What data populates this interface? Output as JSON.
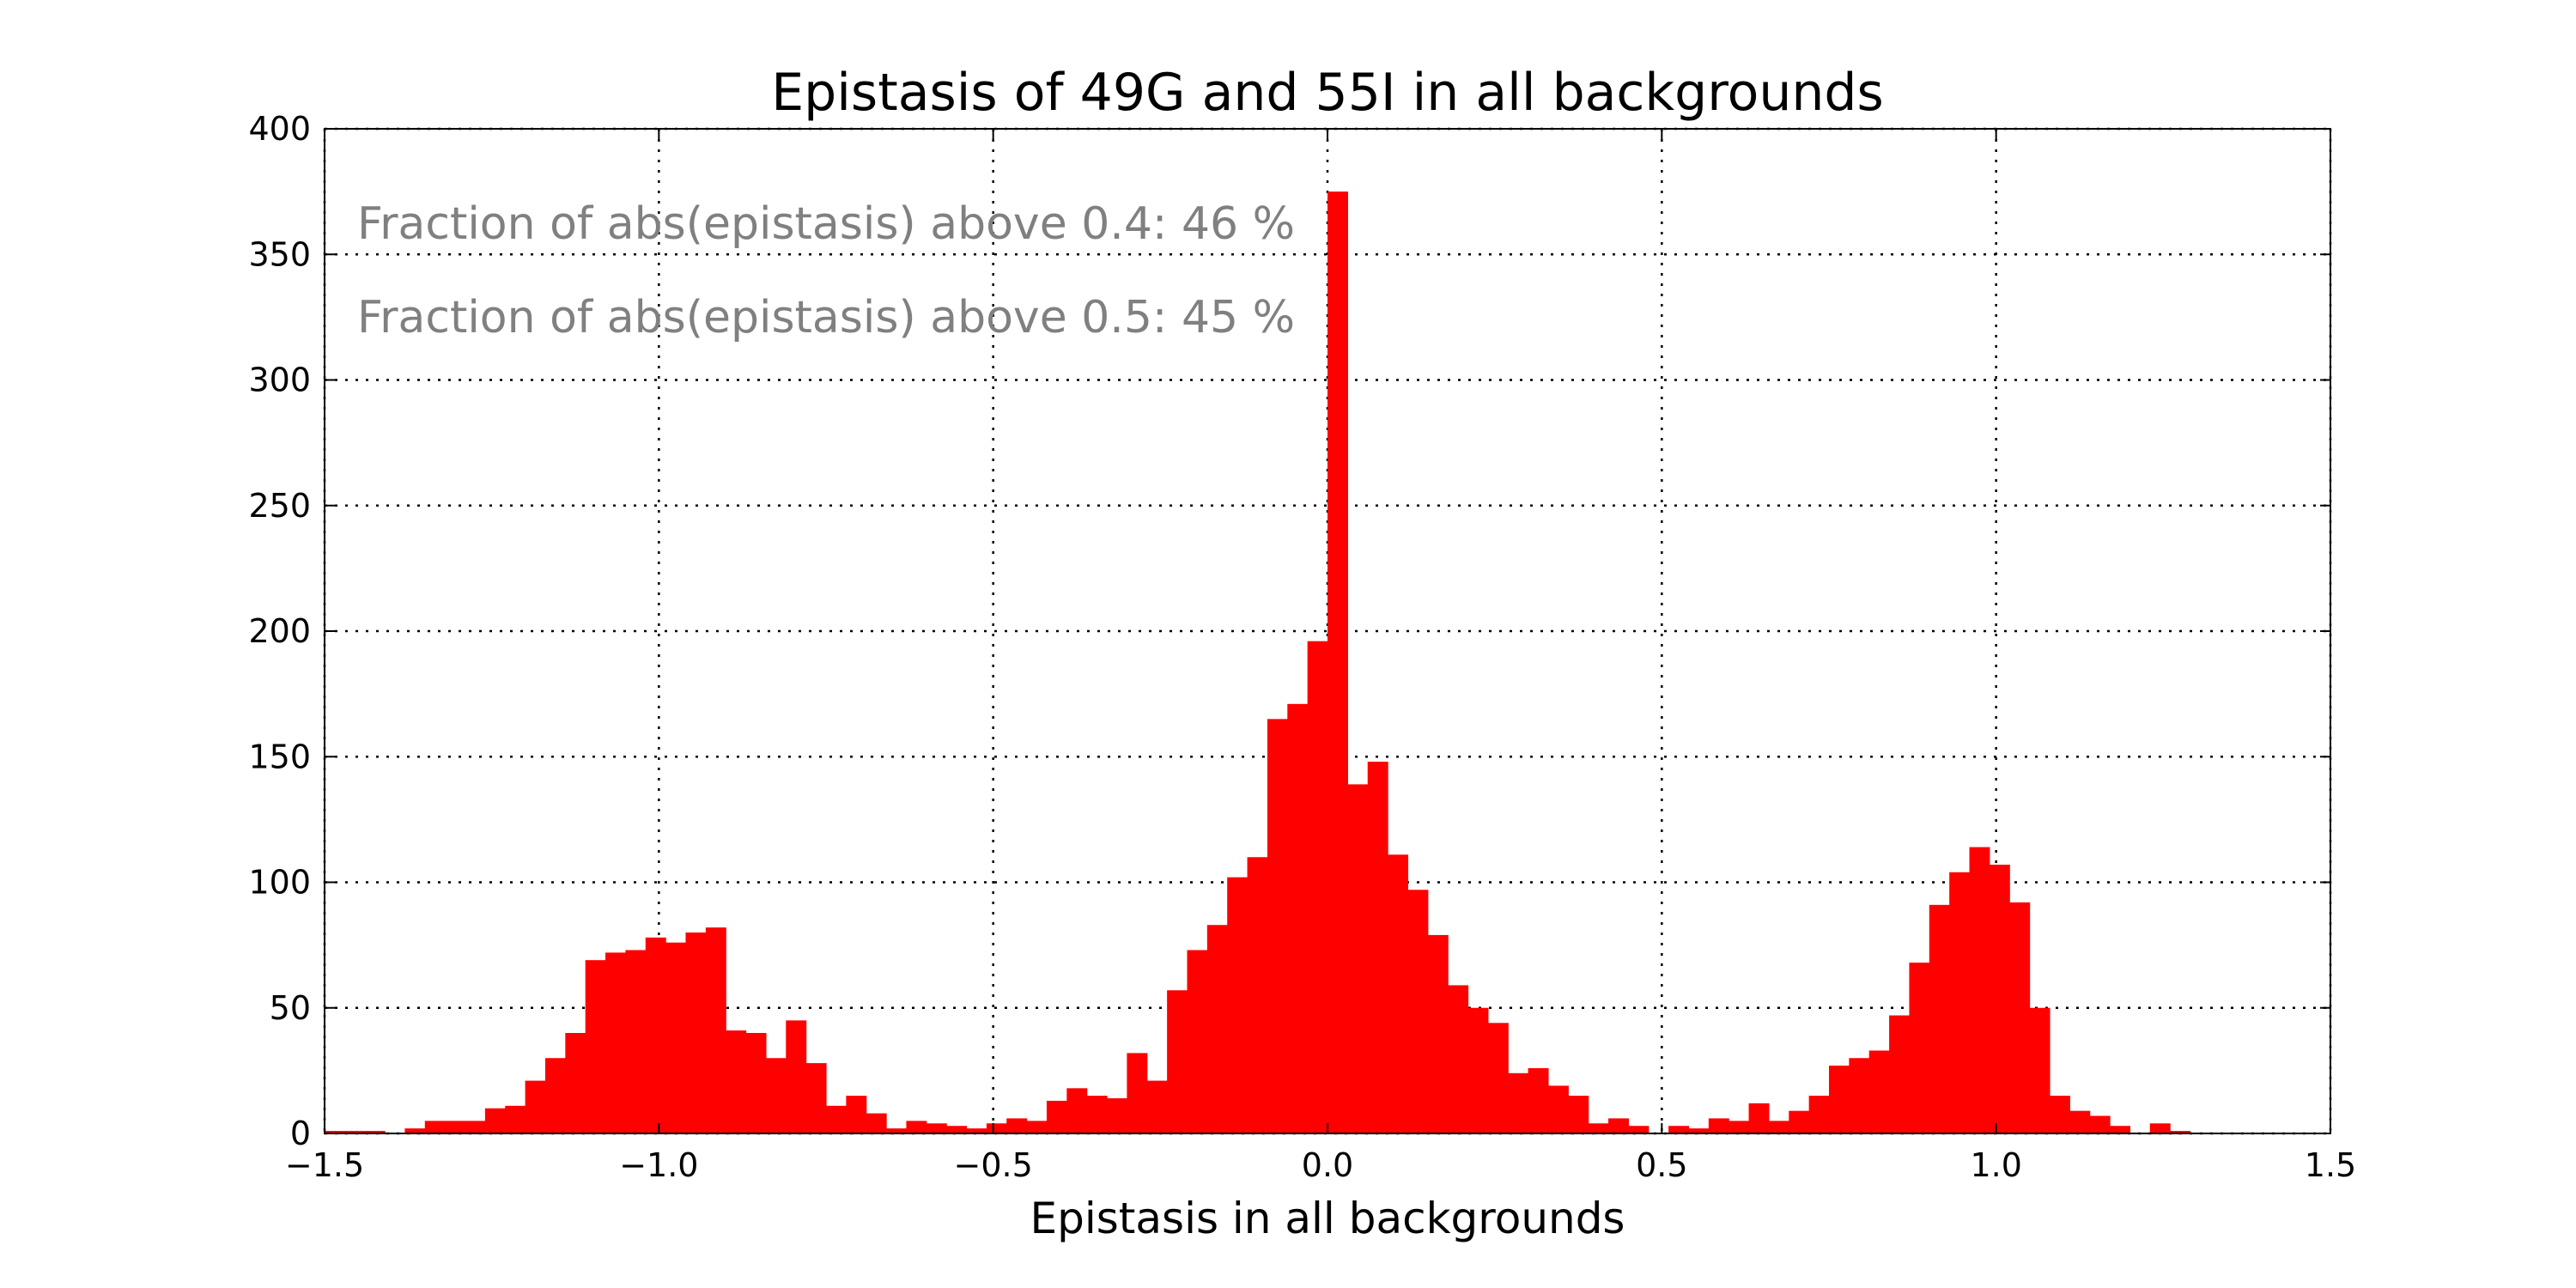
{
  "chart_data": {
    "type": "bar",
    "title": "Epistasis of 49G and 55I in all backgrounds",
    "xlabel": "Epistasis in all backgrounds",
    "ylabel": "",
    "xlim": [
      -1.5,
      1.5
    ],
    "ylim": [
      0,
      400
    ],
    "xticks": [
      -1.5,
      -1.0,
      -0.5,
      0.0,
      0.5,
      1.0,
      1.5
    ],
    "xtick_labels": [
      "−1.5",
      "−1.0",
      "−0.5",
      "0.0",
      "0.5",
      "1.0",
      "1.5"
    ],
    "yticks": [
      0,
      50,
      100,
      150,
      200,
      250,
      300,
      350,
      400
    ],
    "ytick_labels": [
      "0",
      "50",
      "100",
      "150",
      "200",
      "250",
      "300",
      "350",
      "400"
    ],
    "grid": true,
    "bar_color": "#ff0000",
    "bin_width": 0.03,
    "bins_start": [
      -1.5,
      -1.47,
      -1.44,
      -1.41,
      -1.38,
      -1.35,
      -1.32,
      -1.29,
      -1.26,
      -1.23,
      -1.2,
      -1.17,
      -1.14,
      -1.11,
      -1.08,
      -1.05,
      -1.02,
      -0.99,
      -0.96,
      -0.93,
      -0.9,
      -0.87,
      -0.84,
      -0.81,
      -0.78,
      -0.75,
      -0.72,
      -0.69,
      -0.66,
      -0.63,
      -0.6,
      -0.57,
      -0.54,
      -0.51,
      -0.48,
      -0.45,
      -0.42,
      -0.39,
      -0.36,
      -0.33,
      -0.3,
      -0.27,
      -0.24,
      -0.21,
      -0.18,
      -0.15,
      -0.12,
      -0.09,
      -0.06,
      -0.03,
      0.0,
      0.03,
      0.06,
      0.09,
      0.12,
      0.15,
      0.18,
      0.21,
      0.24,
      0.27,
      0.3,
      0.33,
      0.36,
      0.39,
      0.42,
      0.45,
      0.48,
      0.51,
      0.54,
      0.57,
      0.6,
      0.63,
      0.66,
      0.69,
      0.72,
      0.75,
      0.78,
      0.81,
      0.84,
      0.87,
      0.9,
      0.93,
      0.96,
      0.99,
      1.02,
      1.05,
      1.08,
      1.11,
      1.14,
      1.17,
      1.2,
      1.23,
      1.26,
      1.29,
      1.32,
      1.35,
      1.38,
      1.41,
      1.44,
      1.47
    ],
    "values": [
      1,
      1,
      1,
      0,
      2,
      5,
      5,
      5,
      10,
      11,
      21,
      30,
      40,
      69,
      72,
      73,
      78,
      76,
      80,
      82,
      41,
      40,
      30,
      45,
      28,
      11,
      15,
      8,
      2,
      5,
      4,
      3,
      2,
      4,
      6,
      5,
      13,
      18,
      15,
      14,
      32,
      21,
      57,
      73,
      83,
      102,
      110,
      165,
      171,
      196,
      375,
      139,
      148,
      111,
      97,
      79,
      59,
      50,
      44,
      24,
      26,
      19,
      15,
      4,
      6,
      3,
      0,
      3,
      2,
      6,
      5,
      12,
      5,
      9,
      15,
      27,
      30,
      33,
      47,
      68,
      91,
      104,
      114,
      107,
      92,
      50,
      15,
      9,
      7,
      3,
      0,
      4,
      1,
      0,
      0,
      0,
      0,
      0,
      0,
      0
    ],
    "annotations": [
      "Fraction of abs(epistasis) above 0.4: 46 %",
      "Fraction of abs(epistasis) above 0.5: 45 %"
    ]
  }
}
